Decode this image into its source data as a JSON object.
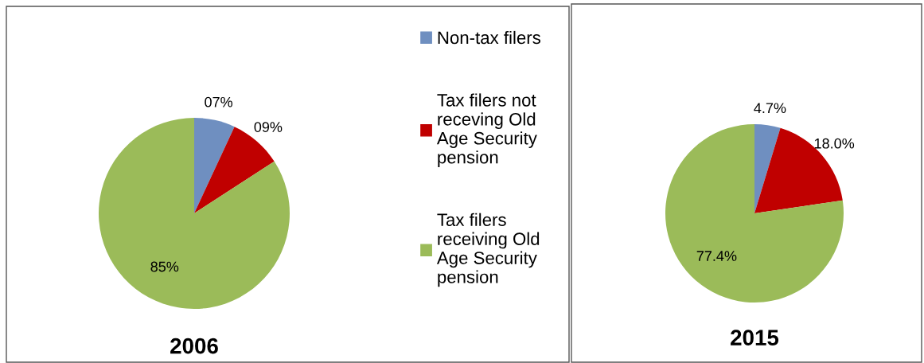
{
  "chart_data": [
    {
      "type": "pie",
      "title": "2006",
      "categories": [
        "Non-tax filers",
        "Tax filers not receving Old Age Security pension",
        "Tax filers receiving Old Age Security pension"
      ],
      "values": [
        7,
        9,
        85
      ],
      "value_labels": [
        "07%",
        "09%",
        "85%"
      ],
      "colors": [
        "#6f8fc0",
        "#c00000",
        "#9bbb59"
      ],
      "legend": "right"
    },
    {
      "type": "pie",
      "title": "2015",
      "categories": [
        null,
        null,
        null
      ],
      "values": [
        4.7,
        18.0,
        77.4
      ],
      "value_labels": [
        "4.7%",
        "18.0%",
        "77.4%"
      ],
      "colors": [
        "#6f8fc0",
        "#c00000",
        "#9bbb59"
      ]
    }
  ]
}
